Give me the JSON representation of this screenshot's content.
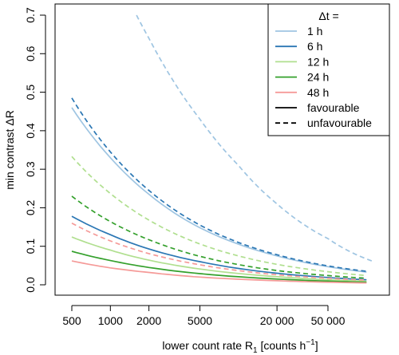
{
  "chart_data": {
    "type": "line",
    "xscale": "log",
    "xlabel": "lower count rate R",
    "xlabel_sub": "1",
    "xlabel_unit": " [counts h",
    "xlabel_sup": "−1",
    "xlabel_close": "]",
    "ylabel": "min contrast  ΔR",
    "xlim": [
      500,
      120000
    ],
    "ylim": [
      0,
      0.7
    ],
    "xticks": [
      {
        "value": 500,
        "label": "500"
      },
      {
        "value": 1000,
        "label": "1000"
      },
      {
        "value": 2000,
        "label": "2000"
      },
      {
        "value": 5000,
        "label": "5000"
      },
      {
        "value": 20000,
        "label": "20 000"
      },
      {
        "value": 50000,
        "label": "50 000"
      }
    ],
    "yticks": [
      {
        "value": 0.0,
        "label": "0.0"
      },
      {
        "value": 0.1,
        "label": "0.1"
      },
      {
        "value": 0.2,
        "label": "0.2"
      },
      {
        "value": 0.3,
        "label": "0.3"
      },
      {
        "value": 0.4,
        "label": "0.4"
      },
      {
        "value": 0.5,
        "label": "0.5"
      },
      {
        "value": 0.6,
        "label": "0.6"
      },
      {
        "value": 0.7,
        "label": "0.7"
      }
    ],
    "legend": {
      "title": "Δt =",
      "position": "top-right",
      "color_entries": [
        {
          "label": "1 h",
          "color": "#9fc5e2"
        },
        {
          "label": "6 h",
          "color": "#2b77b4"
        },
        {
          "label": "12 h",
          "color": "#b0df8f"
        },
        {
          "label": "24 h",
          "color": "#34a02c"
        },
        {
          "label": "48 h",
          "color": "#f59a98"
        }
      ],
      "style_entries": [
        {
          "label": "favourable",
          "dash": "solid"
        },
        {
          "label": "unfavourable",
          "dash": "dashed"
        }
      ]
    },
    "series": [
      {
        "group": "1 h",
        "style": "solid",
        "color": "#9fc5e2",
        "points": [
          [
            500,
            0.46
          ],
          [
            1000,
            0.33
          ],
          [
            2000,
            0.235
          ],
          [
            5000,
            0.148
          ],
          [
            20000,
            0.075
          ],
          [
            50000,
            0.047
          ],
          [
            100000,
            0.033
          ]
        ]
      },
      {
        "group": "1 h",
        "style": "dashed",
        "color": "#9fc5e2",
        "points": [
          [
            1600,
            0.7
          ],
          [
            2000,
            0.64
          ],
          [
            5000,
            0.43
          ],
          [
            10000,
            0.31
          ],
          [
            20000,
            0.21
          ],
          [
            50000,
            0.12
          ],
          [
            110000,
            0.062
          ]
        ]
      },
      {
        "group": "6 h",
        "style": "solid",
        "color": "#2b77b4",
        "points": [
          [
            500,
            0.178
          ],
          [
            1000,
            0.13
          ],
          [
            2000,
            0.093
          ],
          [
            5000,
            0.06
          ],
          [
            20000,
            0.03
          ],
          [
            50000,
            0.019
          ],
          [
            100000,
            0.013
          ]
        ]
      },
      {
        "group": "6 h",
        "style": "dashed",
        "color": "#2b77b4",
        "points": [
          [
            500,
            0.485
          ],
          [
            1000,
            0.345
          ],
          [
            2000,
            0.245
          ],
          [
            5000,
            0.155
          ],
          [
            20000,
            0.078
          ],
          [
            50000,
            0.049
          ],
          [
            100000,
            0.035
          ]
        ]
      },
      {
        "group": "12 h",
        "style": "solid",
        "color": "#b0df8f",
        "points": [
          [
            500,
            0.124
          ],
          [
            1000,
            0.09
          ],
          [
            2000,
            0.064
          ],
          [
            5000,
            0.041
          ],
          [
            20000,
            0.021
          ],
          [
            50000,
            0.013
          ],
          [
            100000,
            0.009
          ]
        ]
      },
      {
        "group": "12 h",
        "style": "dashed",
        "color": "#b0df8f",
        "points": [
          [
            500,
            0.333
          ],
          [
            1000,
            0.237
          ],
          [
            2000,
            0.168
          ],
          [
            5000,
            0.106
          ],
          [
            20000,
            0.053
          ],
          [
            50000,
            0.034
          ],
          [
            100000,
            0.024
          ]
        ]
      },
      {
        "group": "24 h",
        "style": "solid",
        "color": "#34a02c",
        "points": [
          [
            500,
            0.087
          ],
          [
            1000,
            0.063
          ],
          [
            2000,
            0.045
          ],
          [
            5000,
            0.029
          ],
          [
            20000,
            0.015
          ],
          [
            50000,
            0.0095
          ],
          [
            100000,
            0.0067
          ]
        ]
      },
      {
        "group": "24 h",
        "style": "dashed",
        "color": "#34a02c",
        "points": [
          [
            500,
            0.23
          ],
          [
            1000,
            0.164
          ],
          [
            2000,
            0.117
          ],
          [
            5000,
            0.074
          ],
          [
            20000,
            0.037
          ],
          [
            50000,
            0.024
          ],
          [
            100000,
            0.017
          ]
        ]
      },
      {
        "group": "48 h",
        "style": "solid",
        "color": "#f59a98",
        "points": [
          [
            500,
            0.062
          ],
          [
            1000,
            0.044
          ],
          [
            2000,
            0.032
          ],
          [
            5000,
            0.02
          ],
          [
            20000,
            0.0105
          ],
          [
            50000,
            0.0067
          ],
          [
            100000,
            0.0047
          ]
        ]
      },
      {
        "group": "48 h",
        "style": "dashed",
        "color": "#f59a98",
        "points": [
          [
            500,
            0.16
          ],
          [
            1000,
            0.114
          ],
          [
            2000,
            0.081
          ],
          [
            5000,
            0.052
          ],
          [
            20000,
            0.026
          ],
          [
            50000,
            0.017
          ],
          [
            100000,
            0.012
          ]
        ]
      }
    ]
  }
}
